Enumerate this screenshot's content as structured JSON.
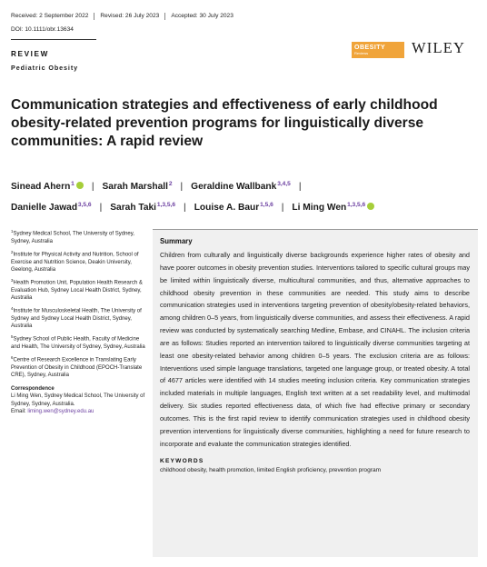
{
  "header": {
    "received": "Received: 2 September 2022",
    "revised": "Revised: 26 July 2023",
    "accepted": "Accepted: 30 July 2023",
    "doi": "DOI: 10.1111/obr.13634"
  },
  "article_type": "REVIEW",
  "section": "Pediatric Obesity",
  "journal_logo": {
    "line1": "OBESITY",
    "line2": "Reviews",
    "color": "#f0a43a"
  },
  "publisher": "WILEY",
  "title": "Communication strategies and effectiveness of early childhood obesity-related prevention programs for linguistically diverse communities: A rapid review",
  "authors": [
    {
      "name": "Sinead Ahern",
      "sup": "1",
      "orcid": true
    },
    {
      "name": "Sarah Marshall",
      "sup": "2",
      "orcid": false
    },
    {
      "name": "Geraldine Wallbank",
      "sup": "3,4,5",
      "orcid": false
    },
    {
      "name": "Danielle Jawad",
      "sup": "3,5,6",
      "orcid": false
    },
    {
      "name": "Sarah Taki",
      "sup": "1,3,5,6",
      "orcid": false
    },
    {
      "name": "Louise A. Baur",
      "sup": "1,5,6",
      "orcid": false
    },
    {
      "name": "Li Ming Wen",
      "sup": "1,3,5,6",
      "orcid": true
    }
  ],
  "affiliations": [
    {
      "num": "1",
      "text": "Sydney Medical School, The University of Sydney, Sydney, Australia"
    },
    {
      "num": "2",
      "text": "Institute for Physical Activity and Nutrition, School of Exercise and Nutrition Science, Deakin University, Geelong, Australia"
    },
    {
      "num": "3",
      "text": "Health Promotion Unit, Population Health Research & Evaluation Hub, Sydney Local Health District, Sydney, Australia"
    },
    {
      "num": "4",
      "text": "Institute for Musculoskeletal Health, The University of Sydney and Sydney Local Health District, Sydney, Australia"
    },
    {
      "num": "5",
      "text": "Sydney School of Public Health, Faculty of Medicine and Health, The University of Sydney, Sydney, Australia"
    },
    {
      "num": "6",
      "text": "Centre of Research Excellence in Translating Early Prevention of Obesity in Childhood (EPOCH-Translate CRE), Sydney, Australia"
    }
  ],
  "correspondence": {
    "heading": "Correspondence",
    "text": "Li Ming Wen, Sydney Medical School, The University of Sydney, Sydney, Australia.",
    "email_label": "Email:",
    "email": "liming.wen@sydney.edu.au"
  },
  "abstract": {
    "heading": "Summary",
    "body": "Children from culturally and linguistically diverse backgrounds experience higher rates of obesity and have poorer outcomes in obesity prevention studies. Interventions tailored to specific cultural groups may be limited within linguistically diverse, multicultural communities, and thus, alternative approaches to childhood obesity prevention in these communities are needed. This study aims to describe communication strategies used in interventions targeting prevention of obesity/obesity-related behaviors, among children 0–5 years, from linguistically diverse communities, and assess their effectiveness. A rapid review was conducted by systematically searching Medline, Embase, and CINAHL. The inclusion criteria are as follows: Studies reported an intervention tailored to linguistically diverse communities targeting at least one obesity-related behavior among children 0–5 years. The exclusion criteria are as follows: Interventions used simple language translations, targeted one language group, or treated obesity. A total of 4677 articles were identified with 14 studies meeting inclusion criteria. Key communication strategies included materials in multiple languages, English text written at a set readability level, and multimodal delivery. Six studies reported effectiveness data, of which five had effective primary or secondary outcomes. This is the first rapid review to identify communication strategies used in childhood obesity prevention interventions for linguistically diverse communities, highlighting a need for future research to incorporate and evaluate the communication strategies identified.",
    "keywords_heading": "KEYWORDS",
    "keywords": "childhood obesity, health promotion, limited English proficiency, prevention program"
  }
}
